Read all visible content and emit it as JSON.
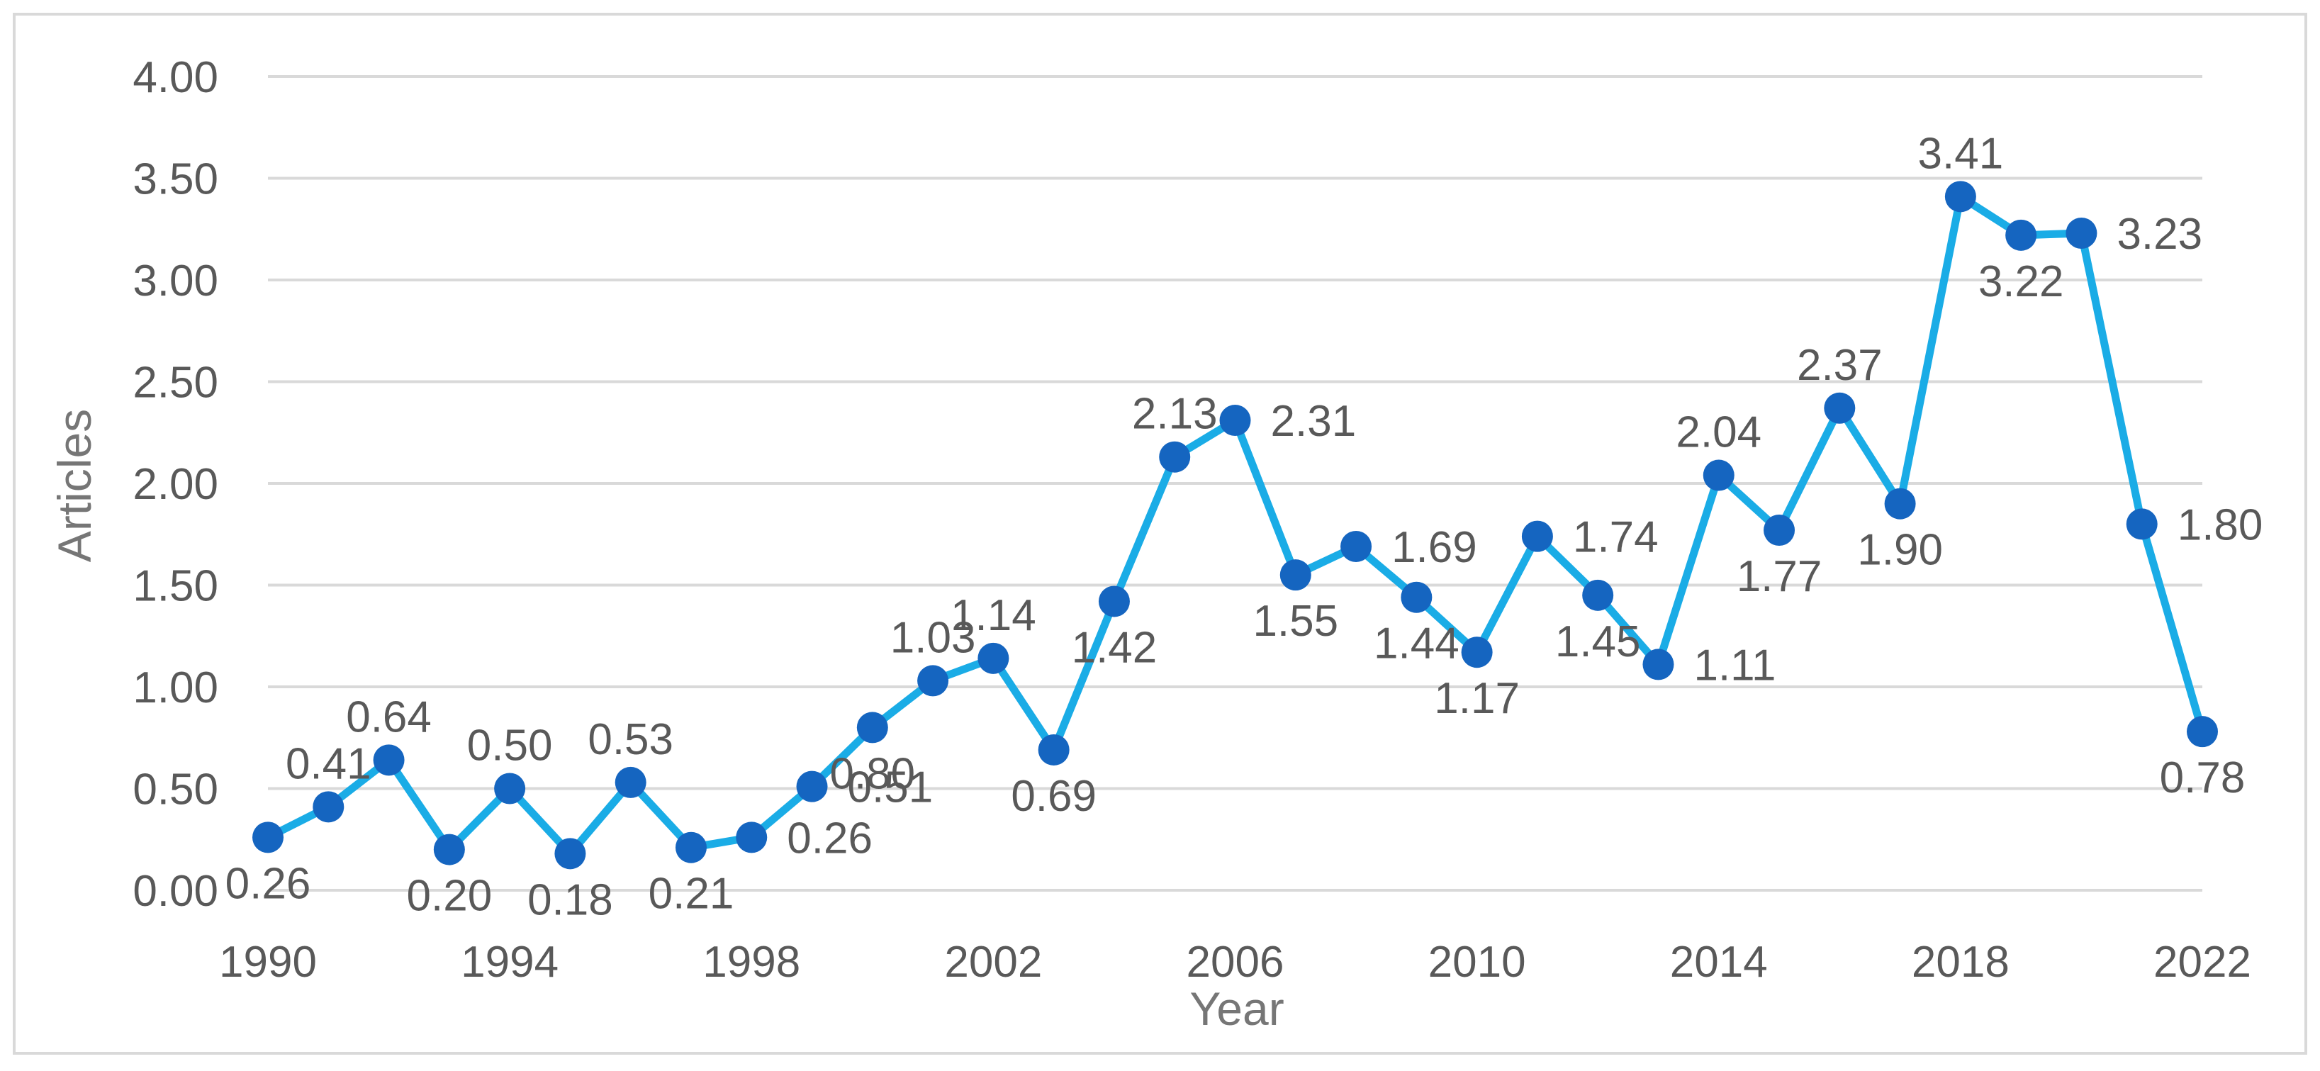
{
  "chart_data": {
    "type": "line",
    "title": "",
    "xlabel": "Year",
    "ylabel": "Articles",
    "x": [
      1990,
      1991,
      1992,
      1993,
      1994,
      1995,
      1996,
      1997,
      1998,
      1999,
      2000,
      2001,
      2002,
      2003,
      2004,
      2005,
      2006,
      2007,
      2008,
      2009,
      2010,
      2011,
      2012,
      2013,
      2014,
      2015,
      2016,
      2017,
      2018,
      2019,
      2020,
      2021,
      2022
    ],
    "xtick_labels": [
      "1990",
      "1994",
      "1998",
      "2002",
      "2006",
      "2010",
      "2014",
      "2018",
      "2022"
    ],
    "ylim": [
      0,
      4
    ],
    "ytick_labels": [
      "0.00",
      "0.50",
      "1.00",
      "1.50",
      "2.00",
      "2.50",
      "3.00",
      "3.50",
      "4.00"
    ],
    "series": [
      {
        "name": "Articles",
        "values": [
          0.26,
          0.41,
          0.64,
          0.2,
          0.5,
          0.18,
          0.53,
          0.21,
          0.26,
          0.51,
          0.8,
          1.03,
          1.14,
          0.69,
          1.42,
          2.13,
          2.31,
          1.55,
          1.69,
          1.44,
          1.17,
          1.74,
          1.45,
          1.11,
          2.04,
          1.77,
          2.37,
          1.9,
          3.41,
          3.22,
          3.23,
          1.8,
          0.78
        ],
        "data_labels": [
          "0.26",
          "0.41",
          "0.64",
          "0.20",
          "0.50",
          "0.18",
          "0.53",
          "0.21",
          "0.26",
          "0.51",
          "0.80",
          "1.03",
          "1.14",
          "0.69",
          "1.42",
          "2.13",
          "2.31",
          "1.55",
          "1.69",
          "1.44",
          "1.17",
          "1.74",
          "1.45",
          "1.11",
          "2.04",
          "1.77",
          "2.37",
          "1.90",
          "3.41",
          "3.22",
          "3.23",
          "1.80",
          "0.78"
        ],
        "label_placement": [
          "below",
          "above",
          "above",
          "below",
          "above",
          "below",
          "above",
          "below",
          "right",
          "right",
          "below",
          "above",
          "above",
          "below",
          "below",
          "above",
          "right",
          "below",
          "right",
          "below",
          "below",
          "right",
          "below",
          "right",
          "above",
          "below",
          "above",
          "below",
          "above",
          "below",
          "right",
          "right",
          "below"
        ]
      }
    ],
    "grid": true,
    "legend": "none",
    "colors": {
      "line": "#1aace6",
      "marker": "#1565c0",
      "grid": "#d9d9d9",
      "text": "#595959",
      "axis_title": "#767676",
      "frame": "#d9d9d9"
    }
  }
}
